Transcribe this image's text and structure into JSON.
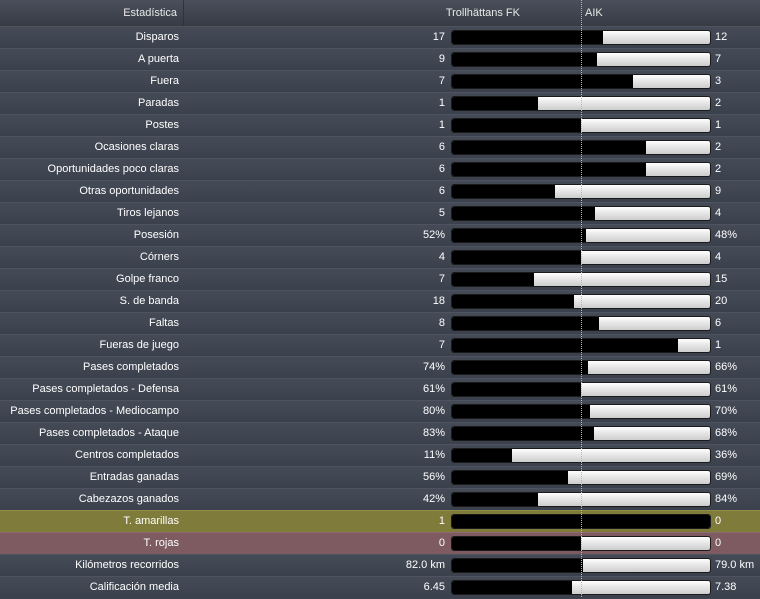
{
  "header": {
    "label": "Estadística",
    "home_team": "Trollhättans FK",
    "away_team": "AIK"
  },
  "stats": [
    {
      "label": "Disparos",
      "home": "17",
      "away": "12",
      "home_share": 0.5846
    },
    {
      "label": "A puerta",
      "home": "9",
      "away": "7",
      "home_share": 0.5625
    },
    {
      "label": "Fuera",
      "home": "7",
      "away": "3",
      "home_share": 0.7
    },
    {
      "label": "Paradas",
      "home": "1",
      "away": "2",
      "home_share": 0.3333
    },
    {
      "label": "Postes",
      "home": "1",
      "away": "1",
      "home_share": 0.5
    },
    {
      "label": "Ocasiones claras",
      "home": "6",
      "away": "2",
      "home_share": 0.75
    },
    {
      "label": "Oportunidades poco claras",
      "home": "6",
      "away": "2",
      "home_share": 0.75
    },
    {
      "label": "Otras oportunidades",
      "home": "6",
      "away": "9",
      "home_share": 0.4
    },
    {
      "label": "Tiros lejanos",
      "home": "5",
      "away": "4",
      "home_share": 0.5556
    },
    {
      "label": "Posesión",
      "home": "52%",
      "away": "48%",
      "home_share": 0.52
    },
    {
      "label": "Córners",
      "home": "4",
      "away": "4",
      "home_share": 0.5
    },
    {
      "label": "Golpe franco",
      "home": "7",
      "away": "15",
      "home_share": 0.3182
    },
    {
      "label": "S. de banda",
      "home": "18",
      "away": "20",
      "home_share": 0.4737
    },
    {
      "label": "Faltas",
      "home": "8",
      "away": "6",
      "home_share": 0.5714
    },
    {
      "label": "Fueras de juego",
      "home": "7",
      "away": "1",
      "home_share": 0.875
    },
    {
      "label": "Pases completados",
      "home": "74%",
      "away": "66%",
      "home_share": 0.5286
    },
    {
      "label": "Pases completados - Defensa",
      "home": "61%",
      "away": "61%",
      "home_share": 0.5
    },
    {
      "label": "Pases completados - Mediocampo",
      "home": "80%",
      "away": "70%",
      "home_share": 0.5333
    },
    {
      "label": "Pases completados - Ataque",
      "home": "83%",
      "away": "68%",
      "home_share": 0.5497
    },
    {
      "label": "Centros completados",
      "home": "11%",
      "away": "36%",
      "home_share": 0.234
    },
    {
      "label": "Entradas ganadas",
      "home": "56%",
      "away": "69%",
      "home_share": 0.448
    },
    {
      "label": "Cabezazos ganados",
      "home": "42%",
      "away": "84%",
      "home_share": 0.3333
    },
    {
      "label": "T. amarillas",
      "home": "1",
      "away": "0",
      "home_share": 1.0,
      "highlight": "yellow"
    },
    {
      "label": "T. rojas",
      "home": "0",
      "away": "0",
      "home_share": 0.5,
      "highlight": "red"
    },
    {
      "label": "Kilómetros recorridos",
      "home": "82.0 km",
      "away": "79.0 km",
      "home_share": 0.5093
    },
    {
      "label": "Calificación media",
      "home": "6.45",
      "away": "7.38",
      "home_share": 0.4664
    }
  ]
}
